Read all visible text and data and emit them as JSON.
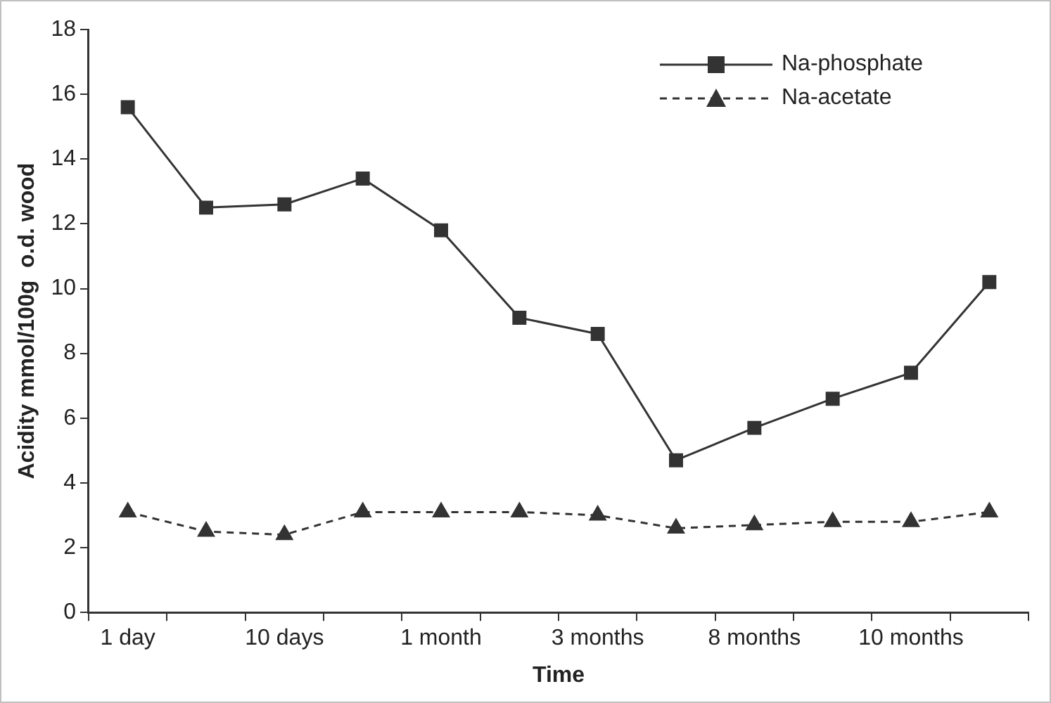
{
  "chart_data": {
    "type": "line",
    "xlabel": "Time",
    "ylabel": "Acidity mmol/100g  o.d. wood",
    "categories": [
      "1 day",
      null,
      "10 days",
      null,
      "1 month",
      null,
      "3 months",
      null,
      "8 months",
      null,
      "10 months",
      null
    ],
    "series": [
      {
        "name": "Na-phosphate",
        "color": "#333333",
        "marker": "square",
        "line_style": "solid",
        "values": [
          15.6,
          12.5,
          12.6,
          13.4,
          11.8,
          9.1,
          8.6,
          4.7,
          5.7,
          6.6,
          7.4,
          10.2
        ]
      },
      {
        "name": "Na-acetate",
        "color": "#333333",
        "marker": "triangle",
        "line_style": "dashed",
        "values": [
          3.1,
          2.5,
          2.4,
          3.1,
          3.1,
          3.1,
          3.0,
          2.6,
          2.7,
          2.8,
          2.8,
          3.1
        ]
      }
    ],
    "ylim": [
      0,
      18
    ],
    "yticks": [
      0,
      2,
      4,
      6,
      8,
      10,
      12,
      14,
      16,
      18
    ],
    "grid": false,
    "legend": "top right"
  }
}
